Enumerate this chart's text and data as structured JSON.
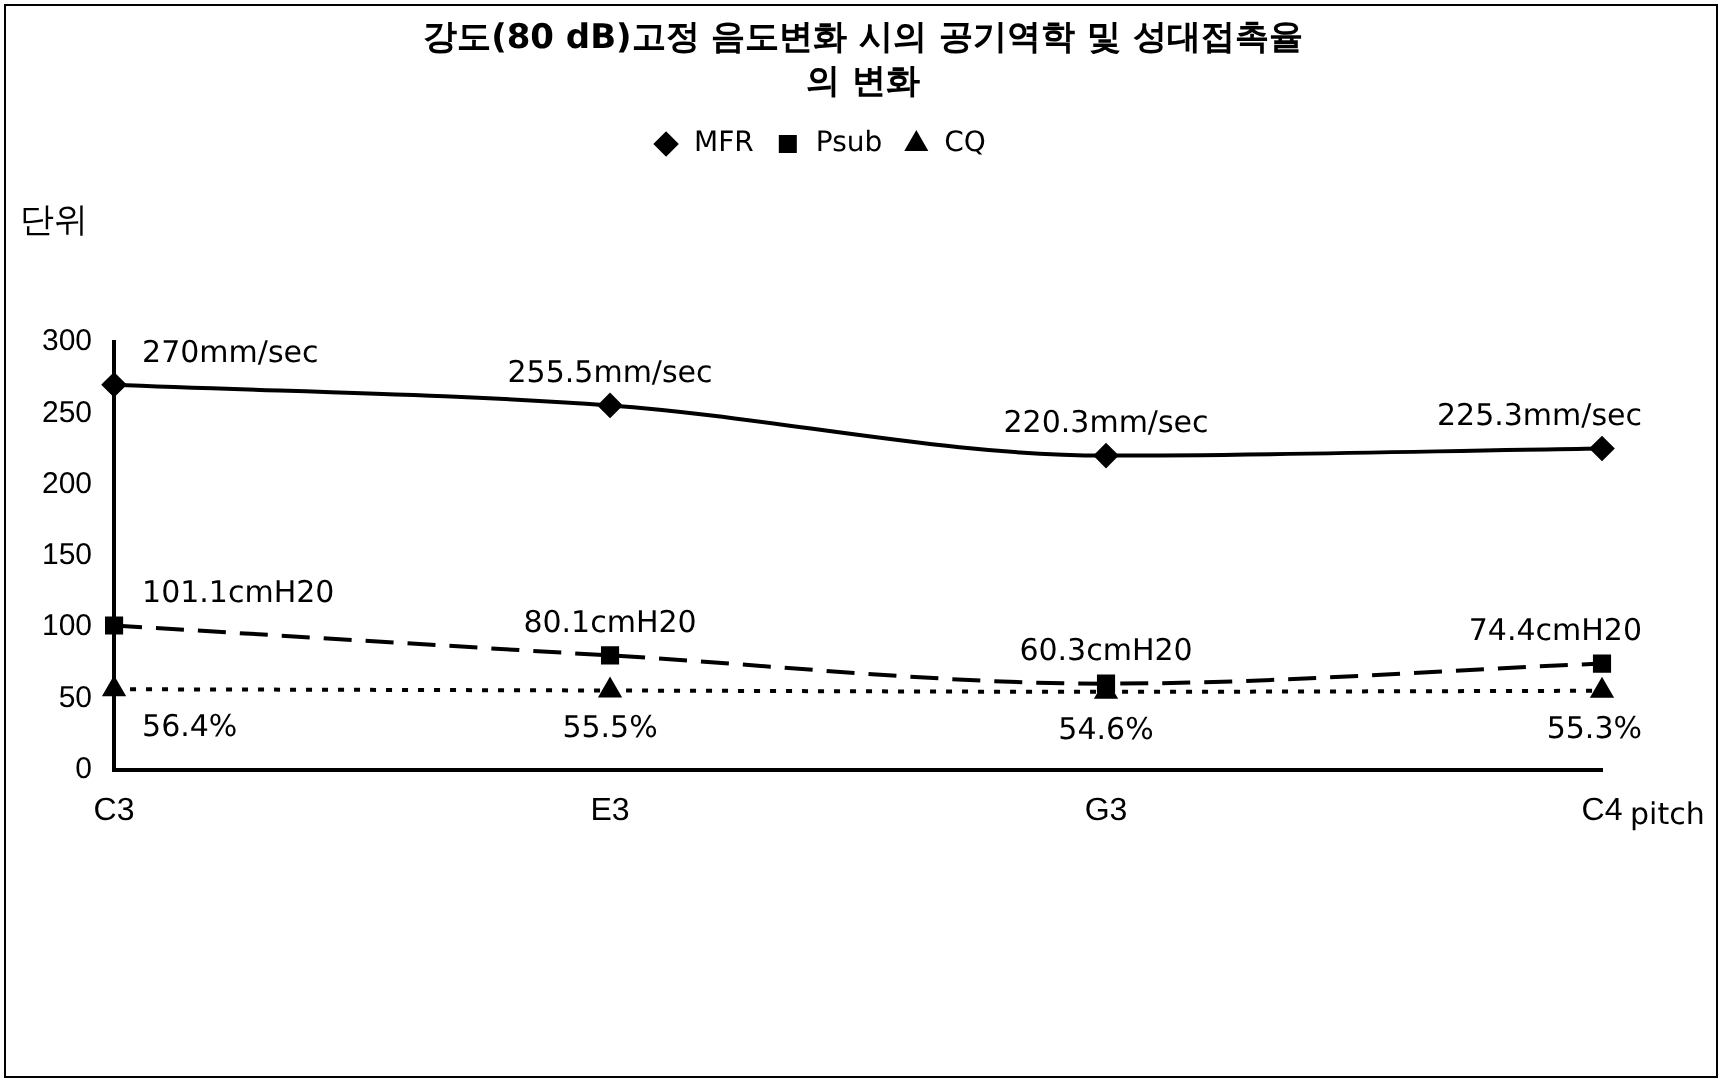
{
  "chart_data": {
    "type": "line",
    "title": "강도(80 dB)고정 음도변화 시의 공기역학 및 성대접촉율의 변화",
    "ylabel": "단위",
    "xlabel": "pitch",
    "categories": [
      "C3",
      "E3",
      "G3",
      "C4"
    ],
    "ylim": [
      0,
      300
    ],
    "yticks": [
      0,
      50,
      100,
      150,
      200,
      250,
      300
    ],
    "grid": false,
    "legend": "top",
    "series": [
      {
        "name": "MFR",
        "color": "#000000",
        "values": [
          270,
          255.5,
          220.3,
          225.3
        ],
        "marker": "diamond",
        "line_style": "solid",
        "value_labels": [
          "270mm/sec",
          "255.5mm/sec",
          "220.3mm/sec",
          "225.3mm/sec"
        ]
      },
      {
        "name": "Psub",
        "color": "#000000",
        "values": [
          101.1,
          80.1,
          60.3,
          74.4
        ],
        "marker": "square",
        "line_style": "dashed",
        "value_labels": [
          "101.1cmH20",
          "80.1cmH20",
          "60.3cmH20",
          "74.4cmH20"
        ]
      },
      {
        "name": "CQ",
        "color": "#000000",
        "values": [
          56.4,
          55.5,
          54.6,
          55.3
        ],
        "marker": "triangle",
        "line_style": "dotted",
        "value_labels": [
          "56.4%",
          "55.5%",
          "54.6%",
          "55.3%"
        ]
      }
    ]
  }
}
